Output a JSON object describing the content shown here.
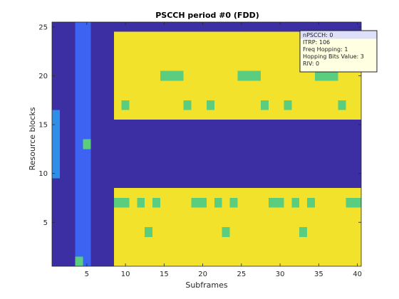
{
  "chart_data": {
    "type": "heatmap",
    "title": "PSCCH period #0 (FDD)",
    "xlabel": "Subframes",
    "ylabel": "Resource blocks",
    "xlim": [
      0.5,
      40.5
    ],
    "ylim": [
      0.5,
      25.5
    ],
    "xticks": [
      5,
      10,
      15,
      20,
      25,
      30,
      35,
      40
    ],
    "yticks": [
      5,
      10,
      15,
      20,
      25
    ],
    "grid": false,
    "colors": {
      "background": "#3b2fa3",
      "pool": "#f2e22c",
      "allocation": "#5bcd7f",
      "reserved": "#2f8ee8",
      "subframe": "#3d63f2"
    },
    "cells": {
      "pool": [
        {
          "x": [
            9,
            40
          ],
          "y": [
            16,
            24
          ]
        },
        {
          "x": [
            9,
            40
          ],
          "y": [
            1,
            8
          ]
        }
      ],
      "reserved": [
        {
          "x": [
            1,
            1
          ],
          "y": [
            10,
            16
          ]
        }
      ],
      "subframe": [
        {
          "x": [
            4,
            5
          ],
          "y": [
            1,
            25
          ]
        }
      ],
      "allocation": [
        {
          "x": [
            5,
            5
          ],
          "y": [
            13,
            13
          ]
        },
        {
          "x": [
            4,
            4
          ],
          "y": [
            1,
            1
          ]
        },
        {
          "x": [
            15,
            17
          ],
          "y": [
            20,
            20
          ]
        },
        {
          "x": [
            25,
            27
          ],
          "y": [
            20,
            20
          ]
        },
        {
          "x": [
            35,
            37
          ],
          "y": [
            20,
            20
          ]
        },
        {
          "x": [
            10,
            10
          ],
          "y": [
            17,
            17
          ]
        },
        {
          "x": [
            18,
            18
          ],
          "y": [
            17,
            17
          ]
        },
        {
          "x": [
            21,
            21
          ],
          "y": [
            17,
            17
          ]
        },
        {
          "x": [
            28,
            28
          ],
          "y": [
            17,
            17
          ]
        },
        {
          "x": [
            31,
            31
          ],
          "y": [
            17,
            17
          ]
        },
        {
          "x": [
            38,
            38
          ],
          "y": [
            17,
            17
          ]
        },
        {
          "x": [
            9,
            10
          ],
          "y": [
            7,
            7
          ]
        },
        {
          "x": [
            12,
            12
          ],
          "y": [
            7,
            7
          ]
        },
        {
          "x": [
            14,
            14
          ],
          "y": [
            7,
            7
          ]
        },
        {
          "x": [
            19,
            20
          ],
          "y": [
            7,
            7
          ]
        },
        {
          "x": [
            22,
            22
          ],
          "y": [
            7,
            7
          ]
        },
        {
          "x": [
            24,
            24
          ],
          "y": [
            7,
            7
          ]
        },
        {
          "x": [
            29,
            30
          ],
          "y": [
            7,
            7
          ]
        },
        {
          "x": [
            32,
            32
          ],
          "y": [
            7,
            7
          ]
        },
        {
          "x": [
            34,
            34
          ],
          "y": [
            7,
            7
          ]
        },
        {
          "x": [
            39,
            40
          ],
          "y": [
            7,
            7
          ]
        },
        {
          "x": [
            13,
            13
          ],
          "y": [
            4,
            4
          ]
        },
        {
          "x": [
            23,
            23
          ],
          "y": [
            4,
            4
          ]
        },
        {
          "x": [
            33,
            33
          ],
          "y": [
            4,
            4
          ]
        }
      ]
    },
    "datatip": {
      "lines": [
        "nPSCCH: 0",
        "ITRP: 106",
        "Freq Hopping: 1",
        "Hopping Bits Value: 3",
        "RIV: 0"
      ]
    }
  }
}
